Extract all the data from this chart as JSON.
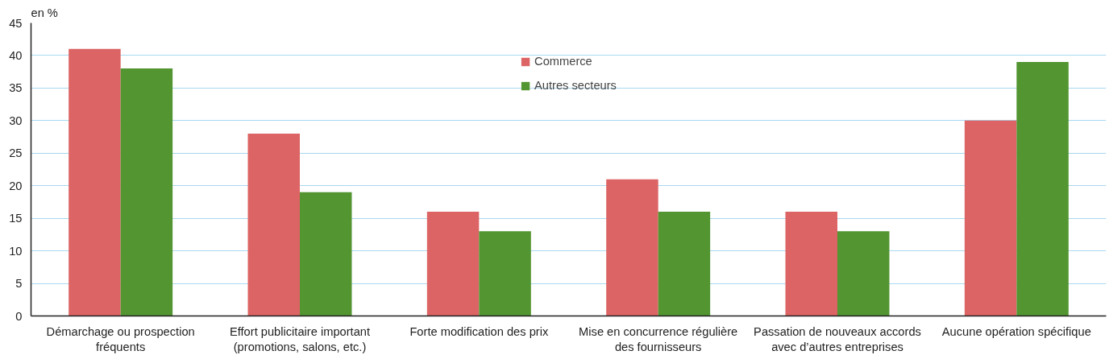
{
  "chart_data": {
    "type": "bar",
    "ylabel": "en %",
    "categories": [
      "Démarchage ou prospection fréquents",
      "Effort publicitaire important (promotions, salons, etc.)",
      "Forte modification des prix",
      "Mise en concurrence régulière des fournisseurs",
      "Passation de nouveaux accords avec d’autres entreprises",
      "Aucune opération spécifique"
    ],
    "series": [
      {
        "name": "Commerce",
        "color": "#dc6464",
        "values": [
          41,
          28,
          16,
          21,
          16,
          30
        ]
      },
      {
        "name": "Autres secteurs",
        "color": "#529531",
        "values": [
          38,
          19,
          13,
          16,
          13,
          39
        ]
      }
    ],
    "ylim": [
      0,
      45
    ],
    "yticks": [
      0,
      5,
      10,
      15,
      20,
      25,
      30,
      35,
      40,
      45
    ],
    "grid": "y",
    "legend": "top"
  }
}
